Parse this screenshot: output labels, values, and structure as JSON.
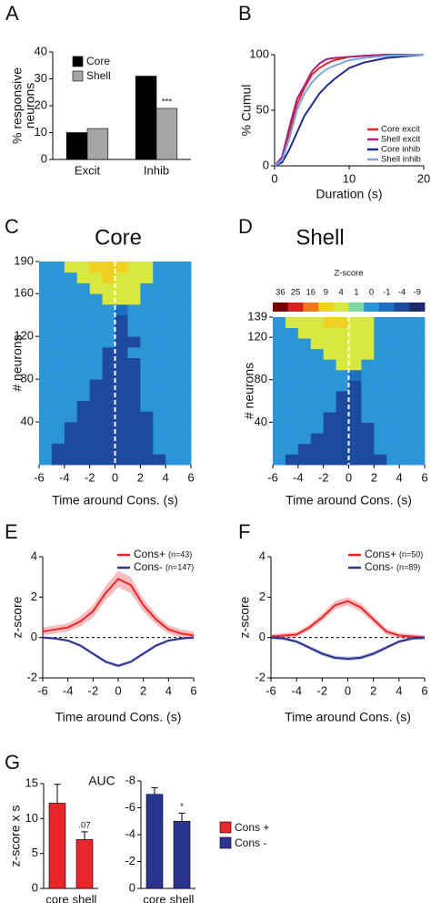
{
  "chart_data": [
    {
      "type": "bar",
      "panel": "A",
      "ylabel": [
        "% responsive",
        "neurons"
      ],
      "categories": [
        "Excit",
        "Inhib"
      ],
      "series": [
        {
          "name": "Core",
          "color": "#000000",
          "values": [
            10,
            31
          ]
        },
        {
          "name": "Shell",
          "color": "#a6a6a6",
          "values": [
            11.5,
            19
          ]
        }
      ],
      "ylim": [
        0,
        40
      ],
      "yticks": [
        0,
        10,
        20,
        30,
        40
      ],
      "legend": "upper left",
      "annotations": [
        {
          "text": "***",
          "category": "Inhib",
          "series": "Shell"
        }
      ]
    },
    {
      "type": "line",
      "panel": "B",
      "xlabel": "Duration (s)",
      "ylabel": "% Cumul",
      "x": [
        0,
        1,
        2,
        3,
        4,
        5,
        6,
        7,
        8,
        10,
        12,
        15,
        20
      ],
      "xlim": [
        0,
        20
      ],
      "xticks": [
        0,
        10,
        20
      ],
      "ylim": [
        0,
        100
      ],
      "yticks": [
        0,
        50,
        100
      ],
      "legend": "lower right",
      "series": [
        {
          "name": "Core excit",
          "color": "#e8262b",
          "values": [
            0,
            5,
            30,
            55,
            70,
            82,
            88,
            92,
            95,
            98,
            99,
            100,
            100
          ]
        },
        {
          "name": "Shell excit",
          "color": "#a3217f",
          "values": [
            0,
            8,
            35,
            60,
            72,
            85,
            92,
            96,
            97,
            98,
            99,
            100,
            100
          ]
        },
        {
          "name": "Core inhib",
          "color": "#1f2c8f",
          "values": [
            0,
            3,
            15,
            30,
            45,
            55,
            65,
            72,
            78,
            88,
            93,
            97,
            100
          ]
        },
        {
          "name": "Shell inhib",
          "color": "#7ba7dc",
          "values": [
            0,
            5,
            25,
            50,
            65,
            75,
            82,
            87,
            90,
            95,
            97,
            99,
            100
          ]
        }
      ]
    },
    {
      "type": "heatmap",
      "panel": "C",
      "title": "Core",
      "xlabel": "Time around Cons. (s)",
      "ylabel": "# neurons",
      "xlim": [
        -6,
        6
      ],
      "xticks": [
        -6,
        -4,
        -2,
        0,
        2,
        4,
        6
      ],
      "ylim": [
        0,
        190
      ],
      "yticks": [
        40,
        80,
        120,
        160,
        190
      ],
      "vline": 0,
      "z": [
        [
          0,
          -3,
          -3,
          -3,
          -3,
          -3,
          -3,
          -3,
          -3,
          -3,
          0,
          0
        ],
        [
          0,
          -3,
          -3,
          -3,
          -3,
          -3,
          -3,
          -3,
          -3,
          0,
          0,
          0
        ],
        [
          0,
          0,
          -3,
          -3,
          -3,
          -3,
          -3,
          -3,
          -3,
          0,
          0,
          0
        ],
        [
          0,
          0,
          -3,
          -3,
          -3,
          -3,
          -3,
          -3,
          -3,
          0,
          0,
          0
        ],
        [
          0,
          0,
          0,
          -3,
          -3,
          -3,
          -3,
          -3,
          -3,
          0,
          0,
          0
        ],
        [
          0,
          0,
          0,
          -3,
          -3,
          -3,
          -3,
          -3,
          0,
          0,
          0,
          0
        ],
        [
          0,
          0,
          0,
          0,
          -3,
          -3,
          -3,
          -3,
          0,
          0,
          0,
          0
        ],
        [
          0,
          0,
          0,
          0,
          -3,
          -3,
          -3,
          -3,
          0,
          0,
          0,
          0
        ],
        [
          0,
          0,
          0,
          0,
          0,
          -3,
          -3,
          -3,
          0,
          0,
          0,
          0
        ],
        [
          0,
          0,
          0,
          0,
          0,
          -3,
          -3,
          -3,
          0,
          0,
          0,
          0
        ],
        [
          0,
          0,
          0,
          0,
          0,
          -3,
          -3,
          0,
          0,
          0,
          0,
          0
        ],
        [
          0,
          0,
          0,
          0,
          0,
          0,
          -3,
          -3,
          0,
          0,
          0,
          0
        ],
        [
          0,
          0,
          0,
          0,
          0,
          0,
          -3,
          0,
          0,
          0,
          0,
          0
        ],
        [
          0,
          0,
          0,
          0,
          0,
          0,
          -3,
          0,
          0,
          0,
          0,
          0
        ],
        [
          0,
          0,
          0,
          0,
          0,
          0,
          -1,
          0,
          0,
          0,
          0,
          0
        ],
        [
          0,
          0,
          0,
          0,
          0,
          4,
          4,
          4,
          0,
          0,
          0,
          0
        ],
        [
          0,
          0,
          0,
          0,
          4,
          6,
          6,
          4,
          0,
          0,
          0,
          0
        ],
        [
          0,
          0,
          0,
          4,
          6,
          9,
          6,
          4,
          4,
          0,
          0,
          0
        ],
        [
          0,
          0,
          4,
          4,
          9,
          9,
          9,
          6,
          4,
          0,
          0,
          0
        ]
      ]
    },
    {
      "type": "heatmap",
      "panel": "D",
      "title": "Shell",
      "xlabel": "Time around Cons. (s)",
      "ylabel": "# neurons",
      "xlim": [
        -6,
        6
      ],
      "xticks": [
        -6,
        -4,
        -2,
        0,
        2,
        4,
        6
      ],
      "ylim": [
        0,
        139
      ],
      "yticks": [
        40,
        80,
        120,
        139
      ],
      "vline": 0,
      "colorbar": {
        "title": "Z-score",
        "ticks": [
          36,
          25,
          16,
          9,
          4,
          1,
          0,
          -1,
          -4,
          -9
        ],
        "colors": [
          "#7a0000",
          "#d42020",
          "#f07818",
          "#f0d020",
          "#d8e840",
          "#7fd8a0",
          "#2b95d8",
          "#1f6fc0",
          "#1d4a9c",
          "#1c2a6a"
        ]
      },
      "z": [
        [
          0,
          -3,
          -3,
          -3,
          -3,
          -3,
          -3,
          -3,
          -3,
          0,
          0,
          0
        ],
        [
          0,
          0,
          -3,
          -3,
          -3,
          -3,
          -3,
          -3,
          0,
          0,
          0,
          0
        ],
        [
          0,
          0,
          0,
          -3,
          -3,
          -3,
          -3,
          -3,
          0,
          0,
          0,
          0
        ],
        [
          0,
          0,
          0,
          0,
          -3,
          -3,
          -3,
          -3,
          0,
          0,
          0,
          0
        ],
        [
          0,
          0,
          0,
          0,
          -3,
          -3,
          -3,
          0,
          0,
          0,
          0,
          0
        ],
        [
          0,
          0,
          0,
          0,
          0,
          -3,
          -3,
          0,
          0,
          0,
          0,
          0
        ],
        [
          0,
          0,
          0,
          0,
          0,
          -3,
          -3,
          0,
          0,
          0,
          0,
          0
        ],
        [
          0,
          0,
          0,
          0,
          0,
          0,
          -3,
          0,
          0,
          0,
          0,
          0
        ],
        [
          0,
          0,
          0,
          0,
          0,
          0,
          -1,
          0,
          0,
          0,
          0,
          0
        ],
        [
          0,
          0,
          0,
          0,
          0,
          4,
          4,
          0,
          0,
          0,
          0,
          0
        ],
        [
          0,
          0,
          0,
          0,
          4,
          4,
          4,
          4,
          0,
          0,
          0,
          0
        ],
        [
          0,
          0,
          0,
          4,
          4,
          6,
          6,
          4,
          0,
          0,
          0,
          0
        ],
        [
          0,
          0,
          4,
          4,
          6,
          6,
          6,
          4,
          0,
          0,
          0,
          0
        ],
        [
          0,
          4,
          4,
          6,
          9,
          9,
          6,
          4,
          0,
          0,
          0,
          0
        ]
      ]
    },
    {
      "type": "line",
      "panel": "E",
      "xlabel": "Time around Cons. (s)",
      "ylabel": "z-score",
      "x": [
        -6,
        -5,
        -4,
        -3,
        -2,
        -1,
        0,
        1,
        2,
        3,
        4,
        5,
        6
      ],
      "xlim": [
        -6,
        6
      ],
      "xticks": [
        -6,
        -4,
        -2,
        0,
        2,
        4,
        6
      ],
      "ylim": [
        -2,
        4
      ],
      "yticks": [
        -2,
        0,
        2,
        4
      ],
      "hline": 0,
      "legend": "upper right",
      "series": [
        {
          "name": "Cons+",
          "label": "(n=43)",
          "color": "#e8262b",
          "values": [
            0.3,
            0.4,
            0.5,
            0.8,
            1.3,
            2.2,
            2.9,
            2.6,
            1.6,
            0.9,
            0.4,
            0.2,
            0.1
          ],
          "errors": [
            0.2,
            0.2,
            0.2,
            0.25,
            0.3,
            0.35,
            0.4,
            0.4,
            0.3,
            0.25,
            0.2,
            0.2,
            0.2
          ]
        },
        {
          "name": "Cons-",
          "label": "(n=147)",
          "color": "#2b3590",
          "values": [
            0,
            -0.05,
            -0.15,
            -0.4,
            -0.8,
            -1.2,
            -1.4,
            -1.2,
            -0.8,
            -0.4,
            -0.15,
            -0.05,
            0
          ],
          "errors": [
            0.06,
            0.06,
            0.06,
            0.07,
            0.08,
            0.08,
            0.08,
            0.08,
            0.08,
            0.07,
            0.06,
            0.06,
            0.06
          ]
        }
      ]
    },
    {
      "type": "line",
      "panel": "F",
      "xlabel": "Time around Cons. (s)",
      "ylabel": "z-score",
      "x": [
        -6,
        -5,
        -4,
        -3,
        -2,
        -1,
        0,
        1,
        2,
        3,
        4,
        5,
        6
      ],
      "xlim": [
        -6,
        6
      ],
      "xticks": [
        -6,
        -4,
        -2,
        0,
        2,
        4,
        6
      ],
      "ylim": [
        -2,
        4
      ],
      "yticks": [
        -2,
        0,
        2,
        4
      ],
      "hline": 0,
      "legend": "upper right",
      "series": [
        {
          "name": "Cons+",
          "label": "(n=50)",
          "color": "#e8262b",
          "values": [
            0.05,
            0.1,
            0.15,
            0.5,
            1.0,
            1.6,
            1.8,
            1.5,
            0.9,
            0.3,
            0.1,
            0.05,
            0
          ],
          "errors": [
            0.12,
            0.12,
            0.12,
            0.15,
            0.18,
            0.2,
            0.2,
            0.2,
            0.18,
            0.15,
            0.12,
            0.12,
            0.12
          ]
        },
        {
          "name": "Cons-",
          "label": "(n=89)",
          "color": "#2b3590",
          "values": [
            0,
            -0.05,
            -0.2,
            -0.5,
            -0.8,
            -1.0,
            -1.05,
            -1.0,
            -0.8,
            -0.5,
            -0.2,
            -0.05,
            0
          ],
          "errors": [
            0.08,
            0.08,
            0.08,
            0.09,
            0.1,
            0.1,
            0.1,
            0.1,
            0.1,
            0.09,
            0.08,
            0.08,
            0.08
          ]
        }
      ]
    },
    {
      "type": "bar",
      "panel": "G",
      "title": "AUC",
      "ylabel": "z-score x s",
      "categories": [
        "core",
        "shell"
      ],
      "values": [
        12.2,
        7
      ],
      "errors": [
        2.7,
        1.1
      ],
      "color": "#e8262b",
      "ylim": [
        0,
        15
      ],
      "yticks": [
        0,
        5,
        10,
        15
      ],
      "annotations": [
        {
          "text": ".07",
          "category": "shell"
        }
      ]
    },
    {
      "type": "bar",
      "categories": [
        "core",
        "shell"
      ],
      "values": [
        -7,
        -5
      ],
      "errors": [
        0.5,
        0.6
      ],
      "color": "#2b3590",
      "ylim": [
        0,
        -8
      ],
      "yticks": [
        -8,
        -6,
        -4,
        -2,
        0
      ],
      "annotations": [
        {
          "text": "*",
          "category": "shell"
        }
      ],
      "legend_items": [
        {
          "name": "Cons +",
          "color": "#e8262b"
        },
        {
          "name": "Cons -",
          "color": "#2b3590"
        }
      ]
    }
  ]
}
